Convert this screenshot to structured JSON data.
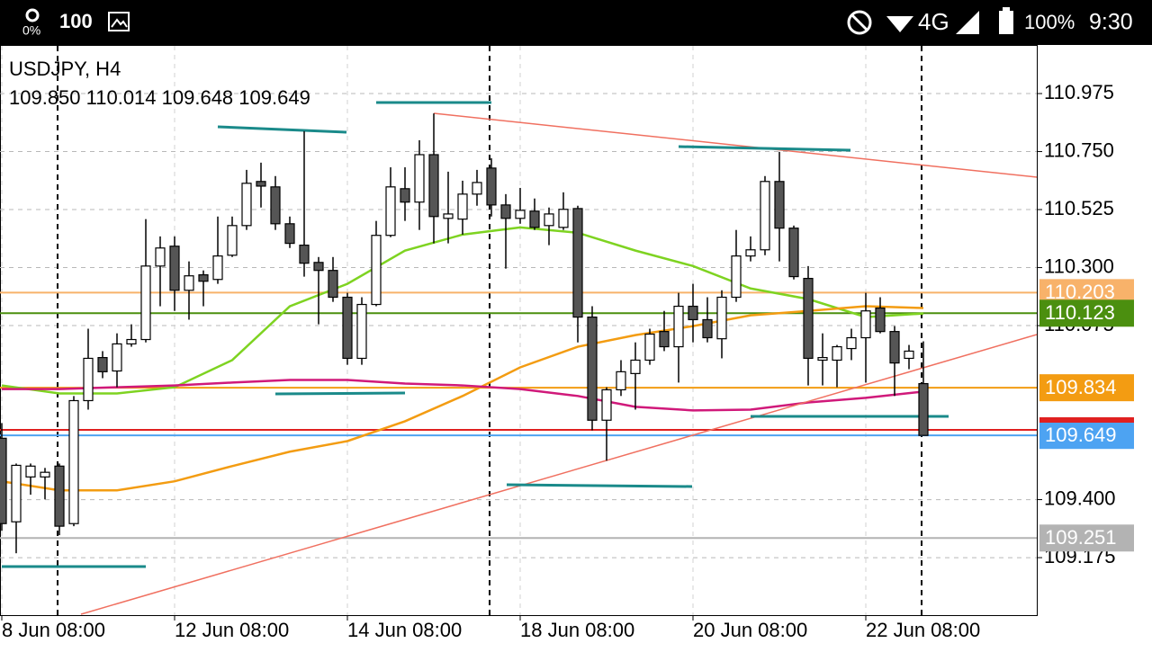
{
  "status_bar": {
    "battery_saver": "0%",
    "notification": "100",
    "network": "4G",
    "battery": "100%",
    "time": "9:30"
  },
  "chart_data": {
    "type": "candlestick",
    "title": "USDJPY, H4",
    "subtitle": "109.850 110.014 109.648 109.649",
    "categories": [
      "8 Jun 08:00",
      null,
      null,
      null,
      null,
      null,
      null,
      null,
      null,
      null,
      null,
      null,
      "12 Jun 08:00",
      null,
      null,
      null,
      null,
      null,
      null,
      null,
      null,
      null,
      null,
      null,
      "14 Jun 08:00",
      null,
      null,
      null,
      null,
      null,
      null,
      null,
      null,
      null,
      null,
      null,
      "18 Jun 08:00",
      null,
      null,
      null,
      null,
      null,
      null,
      null,
      null,
      null,
      null,
      null,
      "20 Jun 08:00",
      null,
      null,
      null,
      null,
      null,
      null,
      null,
      null,
      null,
      null,
      null,
      "22 Jun 08:00",
      null,
      null,
      null,
      null
    ],
    "open": [
      109.638,
      109.314,
      109.488,
      109.488,
      109.53,
      109.307,
      109.784,
      109.951,
      109.899,
      110.004,
      110.021,
      110.306,
      110.383,
      110.212,
      110.272,
      110.254,
      110.348,
      110.463,
      110.634,
      110.613,
      110.47,
      110.387,
      110.32,
      110.289,
      110.185,
      109.948,
      110.157,
      110.425,
      110.606,
      110.554,
      110.738,
      110.491,
      110.488,
      110.585,
      110.686,
      110.543,
      110.491,
      110.519,
      110.463,
      110.456,
      110.529,
      110.108,
      109.708,
      109.826,
      109.889,
      109.941,
      110.052,
      109.993,
      110.15,
      110.098,
      110.024,
      110.185,
      110.345,
      110.369,
      110.634,
      110.453,
      110.258,
      109.941,
      109.941,
      109.986,
      110.028,
      110.143,
      110.052,
      109.948,
      109.85
    ],
    "high": [
      109.697,
      109.54,
      109.54,
      109.523,
      109.54,
      109.802,
      110.063,
      109.976,
      110.045,
      110.08,
      110.488,
      110.421,
      110.421,
      110.324,
      110.289,
      110.498,
      110.498,
      110.679,
      110.707,
      110.655,
      110.498,
      110.829,
      110.341,
      110.341,
      110.202,
      110.185,
      110.481,
      110.689,
      110.689,
      110.794,
      110.898,
      110.672,
      110.637,
      110.679,
      110.724,
      110.585,
      110.609,
      110.568,
      110.533,
      110.592,
      110.54,
      110.15,
      109.836,
      109.941,
      110.01,
      110.063,
      110.132,
      110.202,
      110.237,
      110.185,
      110.212,
      110.446,
      110.421,
      110.655,
      110.749,
      110.463,
      110.306,
      110.045,
      110.0,
      110.063,
      110.202,
      110.185,
      110.073,
      110.0,
      110.014
    ],
    "low": [
      109.279,
      109.192,
      109.419,
      109.401,
      109.262,
      109.297,
      109.749,
      109.871,
      109.836,
      109.993,
      110.01,
      110.15,
      110.132,
      110.098,
      110.15,
      110.237,
      110.341,
      110.446,
      110.533,
      110.446,
      110.376,
      110.265,
      110.08,
      110.167,
      109.923,
      109.923,
      110.15,
      110.418,
      110.481,
      110.446,
      110.394,
      110.394,
      110.428,
      110.54,
      110.498,
      110.296,
      110.47,
      110.446,
      110.387,
      110.446,
      110.01,
      109.669,
      109.551,
      109.802,
      109.749,
      109.923,
      109.976,
      109.854,
      110.01,
      110.01,
      109.948,
      110.167,
      110.324,
      110.348,
      110.324,
      110.254,
      109.843,
      109.843,
      109.836,
      109.941,
      109.854,
      110.045,
      109.802,
      109.906,
      109.648
    ],
    "close": [
      109.307,
      109.533,
      109.53,
      109.506,
      109.297,
      109.784,
      109.948,
      109.896,
      110.004,
      110.021,
      110.306,
      110.376,
      110.212,
      110.268,
      110.247,
      110.345,
      110.463,
      110.627,
      110.616,
      110.47,
      110.394,
      110.317,
      110.289,
      110.185,
      109.948,
      110.157,
      110.425,
      110.613,
      110.554,
      110.738,
      110.498,
      110.508,
      110.585,
      110.63,
      110.543,
      110.491,
      110.522,
      110.456,
      110.508,
      110.526,
      110.108,
      109.708,
      109.826,
      109.896,
      109.941,
      110.042,
      109.993,
      110.15,
      110.098,
      110.028,
      110.185,
      110.345,
      110.369,
      110.634,
      110.453,
      110.265,
      109.948,
      109.951,
      109.993,
      110.028,
      110.132,
      110.052,
      109.93,
      109.976,
      109.649
    ],
    "up_color": "#ffffff",
    "down_color": "#555555",
    "ylim": [
      108.952,
      111.16
    ],
    "yticks": [
      110.975,
      {
        "value": 110.75,
        "label": "110.750"
      },
      110.525,
      {
        "value": 110.3,
        "label": "110.300"
      },
      110.075,
      {
        "value": 109.4,
        "label": "109.400"
      },
      109.175
    ],
    "grid": true,
    "moving_averages": [
      {
        "color": "#7ed321",
        "x": [
          0,
          4,
          8,
          12,
          16,
          20,
          24,
          28,
          32,
          36,
          40,
          44,
          48,
          52,
          56,
          60,
          64
        ],
        "values": [
          109.843,
          109.812,
          109.812,
          109.836,
          109.941,
          110.15,
          110.237,
          110.366,
          110.428,
          110.456,
          110.435,
          110.366,
          110.306,
          110.219,
          110.178,
          110.108,
          110.122
        ]
      },
      {
        "color": "#f39c12",
        "x": [
          0,
          4,
          8,
          12,
          16,
          20,
          24,
          28,
          32,
          36,
          40,
          44,
          48,
          52,
          56,
          60,
          64
        ],
        "values": [
          109.471,
          109.436,
          109.436,
          109.471,
          109.53,
          109.586,
          109.627,
          109.704,
          109.802,
          109.913,
          109.993,
          110.038,
          110.073,
          110.115,
          110.132,
          110.15,
          110.143
        ]
      },
      {
        "color": "#d0197a",
        "x": [
          0,
          4,
          8,
          12,
          16,
          20,
          24,
          28,
          32,
          36,
          40,
          44,
          48,
          52,
          56,
          60,
          64
        ],
        "values": [
          109.829,
          109.829,
          109.836,
          109.843,
          109.854,
          109.864,
          109.864,
          109.85,
          109.843,
          109.829,
          109.802,
          109.76,
          109.746,
          109.749,
          109.777,
          109.795,
          109.819
        ]
      }
    ],
    "levels": [
      {
        "value": 110.203,
        "color": "#f8b26a"
      },
      {
        "value": 110.123,
        "color": "#4b8f0f"
      },
      {
        "value": 109.834,
        "color": "#f39c12"
      },
      {
        "value": 109.649,
        "color": "#4da3f2"
      },
      {
        "value": 109.251,
        "color": "#b3b3b3"
      }
    ]
  }
}
